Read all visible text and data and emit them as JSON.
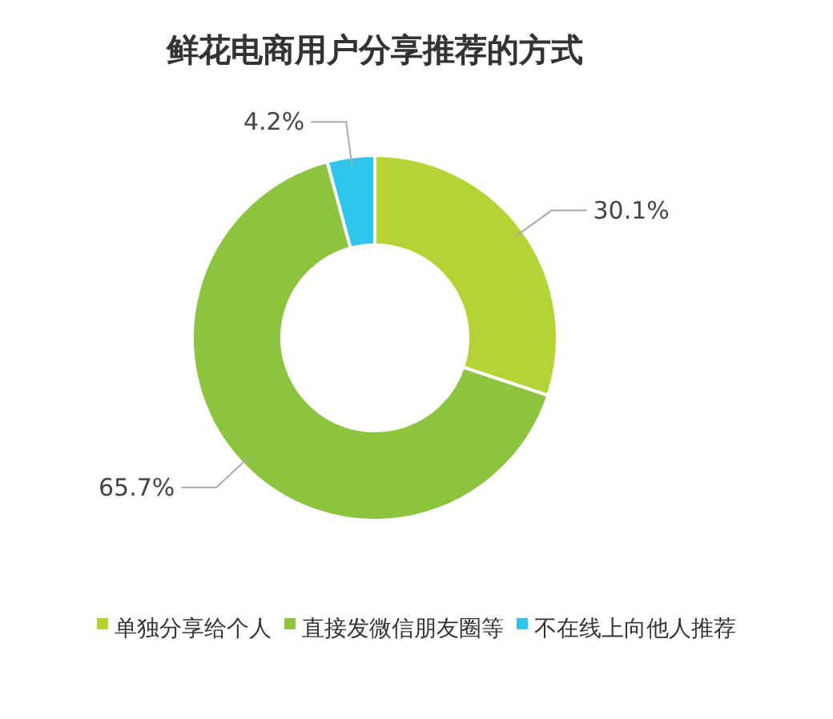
{
  "chart_data": {
    "type": "donut",
    "title": "鲜花电商用户分享推荐的方式",
    "categories": [
      "单独分享给个人",
      "直接发微信朋友圈等",
      "不在线上向他人推荐"
    ],
    "values": [
      30.1,
      65.7,
      4.2
    ],
    "value_labels": [
      "30.1%",
      "65.7%",
      "4.2%"
    ],
    "colors": [
      "#b5d334",
      "#8cc43f",
      "#2ec5ea"
    ],
    "legend": "bottom"
  }
}
